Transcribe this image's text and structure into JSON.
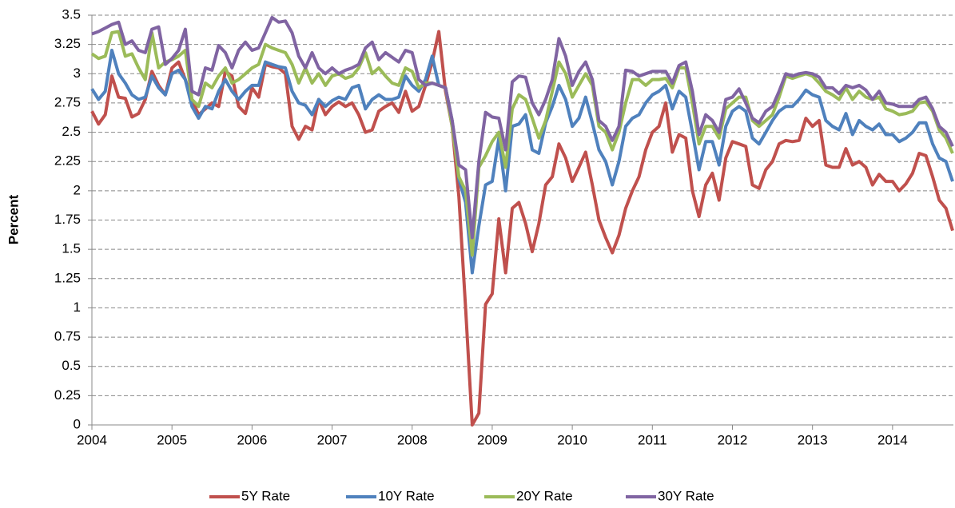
{
  "chart_data": {
    "type": "line",
    "y_label": "Percent",
    "x": [
      2004,
      2004.083,
      2004.167,
      2004.25,
      2004.333,
      2004.417,
      2004.5,
      2004.583,
      2004.667,
      2004.75,
      2004.833,
      2004.917,
      2005,
      2005.083,
      2005.167,
      2005.25,
      2005.333,
      2005.417,
      2005.5,
      2005.583,
      2005.667,
      2005.75,
      2005.833,
      2005.917,
      2006,
      2006.083,
      2006.167,
      2006.25,
      2006.333,
      2006.417,
      2006.5,
      2006.583,
      2006.667,
      2006.75,
      2006.833,
      2006.917,
      2007,
      2007.083,
      2007.167,
      2007.25,
      2007.333,
      2007.417,
      2007.5,
      2007.583,
      2007.667,
      2007.75,
      2007.833,
      2007.917,
      2008,
      2008.083,
      2008.167,
      2008.25,
      2008.333,
      2008.417,
      2008.5,
      2008.583,
      2008.667,
      2008.75,
      2008.833,
      2008.917,
      2009,
      2009.083,
      2009.167,
      2009.25,
      2009.333,
      2009.417,
      2009.5,
      2009.583,
      2009.667,
      2009.75,
      2009.833,
      2009.917,
      2010,
      2010.083,
      2010.167,
      2010.25,
      2010.333,
      2010.417,
      2010.5,
      2010.583,
      2010.667,
      2010.75,
      2010.833,
      2010.917,
      2011,
      2011.083,
      2011.167,
      2011.25,
      2011.333,
      2011.417,
      2011.5,
      2011.583,
      2011.667,
      2011.75,
      2011.833,
      2011.917,
      2012,
      2012.083,
      2012.167,
      2012.25,
      2012.333,
      2012.417,
      2012.5,
      2012.583,
      2012.667,
      2012.75,
      2012.833,
      2012.917,
      2013,
      2013.083,
      2013.167,
      2013.25,
      2013.333,
      2013.417,
      2013.5,
      2013.583,
      2013.667,
      2013.75,
      2013.833,
      2013.917,
      2014,
      2014.083,
      2014.167,
      2014.25,
      2014.333,
      2014.417,
      2014.5,
      2014.583,
      2014.667,
      2014.75
    ],
    "series": [
      {
        "name": "5Y Rate",
        "color": "#c0504d",
        "values": [
          2.68,
          2.57,
          2.65,
          2.98,
          2.8,
          2.79,
          2.63,
          2.66,
          2.78,
          3.02,
          2.9,
          2.82,
          3.05,
          3.1,
          2.95,
          2.78,
          2.65,
          2.7,
          2.75,
          2.72,
          3.02,
          2.98,
          2.72,
          2.66,
          2.88,
          2.8,
          3.08,
          3.06,
          3.05,
          3.0,
          2.55,
          2.44,
          2.55,
          2.52,
          2.78,
          2.65,
          2.72,
          2.76,
          2.72,
          2.75,
          2.65,
          2.5,
          2.52,
          2.68,
          2.72,
          2.75,
          2.67,
          2.85,
          2.68,
          2.72,
          2.9,
          3.1,
          3.36,
          2.85,
          2.55,
          1.95,
          1.0,
          0,
          0.1,
          1.03,
          1.12,
          1.76,
          1.3,
          1.85,
          1.9,
          1.72,
          1.48,
          1.72,
          2.05,
          2.12,
          2.4,
          2.28,
          2.08,
          2.2,
          2.33,
          2.05,
          1.75,
          1.6,
          1.47,
          1.62,
          1.85,
          2.0,
          2.12,
          2.35,
          2.5,
          2.55,
          2.75,
          2.33,
          2.48,
          2.45,
          2.0,
          1.78,
          2.05,
          2.15,
          1.92,
          2.28,
          2.42,
          2.4,
          2.38,
          2.05,
          2.02,
          2.18,
          2.25,
          2.4,
          2.43,
          2.42,
          2.43,
          2.62,
          2.55,
          2.6,
          2.22,
          2.2,
          2.2,
          2.36,
          2.22,
          2.25,
          2.2,
          2.05,
          2.14,
          2.08,
          2.08,
          2.0,
          2.06,
          2.15,
          2.32,
          2.3,
          2.12,
          1.92,
          1.85,
          1.66
        ]
      },
      {
        "name": "10Y Rate",
        "color": "#4f81bd",
        "values": [
          2.87,
          2.78,
          2.85,
          3.2,
          3.0,
          2.92,
          2.82,
          2.78,
          2.8,
          2.98,
          2.88,
          2.82,
          3.0,
          3.03,
          2.95,
          2.72,
          2.62,
          2.72,
          2.7,
          2.85,
          2.95,
          2.85,
          2.78,
          2.85,
          2.9,
          2.9,
          3.1,
          3.08,
          3.06,
          3.05,
          2.85,
          2.75,
          2.73,
          2.65,
          2.78,
          2.72,
          2.77,
          2.8,
          2.78,
          2.88,
          2.9,
          2.7,
          2.78,
          2.82,
          2.78,
          2.78,
          2.8,
          2.98,
          2.9,
          2.85,
          2.95,
          3.15,
          2.9,
          2.88,
          2.6,
          2.1,
          1.9,
          1.3,
          1.7,
          2.05,
          2.08,
          2.45,
          2.0,
          2.55,
          2.57,
          2.65,
          2.35,
          2.32,
          2.58,
          2.72,
          2.9,
          2.78,
          2.55,
          2.62,
          2.8,
          2.58,
          2.35,
          2.25,
          2.05,
          2.25,
          2.55,
          2.62,
          2.65,
          2.75,
          2.82,
          2.85,
          2.9,
          2.7,
          2.85,
          2.8,
          2.5,
          2.18,
          2.42,
          2.42,
          2.22,
          2.55,
          2.68,
          2.72,
          2.68,
          2.45,
          2.4,
          2.5,
          2.6,
          2.68,
          2.72,
          2.72,
          2.78,
          2.86,
          2.82,
          2.8,
          2.6,
          2.55,
          2.52,
          2.66,
          2.48,
          2.6,
          2.55,
          2.52,
          2.57,
          2.48,
          2.48,
          2.42,
          2.45,
          2.5,
          2.58,
          2.58,
          2.4,
          2.28,
          2.25,
          2.08
        ]
      },
      {
        "name": "20Y Rate",
        "color": "#9bbb59",
        "values": [
          3.17,
          3.13,
          3.15,
          3.35,
          3.36,
          3.15,
          3.17,
          3.05,
          2.95,
          3.35,
          3.05,
          3.1,
          3.12,
          3.15,
          3.2,
          2.78,
          2.72,
          2.92,
          2.88,
          2.98,
          3.05,
          2.92,
          2.95,
          3.0,
          3.05,
          3.08,
          3.25,
          3.22,
          3.2,
          3.18,
          3.08,
          2.92,
          3.05,
          2.92,
          3.0,
          2.9,
          2.98,
          3.0,
          2.96,
          2.98,
          3.05,
          3.18,
          3.0,
          3.05,
          2.98,
          2.92,
          2.9,
          3.05,
          3.02,
          2.88,
          2.92,
          2.92,
          2.9,
          2.88,
          2.55,
          2.12,
          2.0,
          1.45,
          2.2,
          2.3,
          2.42,
          2.5,
          2.2,
          2.7,
          2.82,
          2.78,
          2.62,
          2.45,
          2.6,
          2.85,
          3.1,
          3.0,
          2.8,
          2.9,
          3.0,
          2.9,
          2.55,
          2.5,
          2.35,
          2.5,
          2.75,
          2.95,
          2.95,
          2.9,
          2.95,
          2.95,
          2.96,
          2.88,
          3.05,
          3.05,
          2.75,
          2.4,
          2.55,
          2.55,
          2.45,
          2.7,
          2.75,
          2.8,
          2.8,
          2.6,
          2.55,
          2.6,
          2.65,
          2.8,
          2.98,
          2.96,
          2.98,
          3.0,
          2.98,
          2.92,
          2.85,
          2.82,
          2.78,
          2.88,
          2.78,
          2.85,
          2.8,
          2.78,
          2.8,
          2.7,
          2.68,
          2.65,
          2.66,
          2.68,
          2.75,
          2.76,
          2.68,
          2.52,
          2.45,
          2.32
        ]
      },
      {
        "name": "30Y Rate",
        "color": "#8064a2",
        "values": [
          3.34,
          3.36,
          3.39,
          3.42,
          3.44,
          3.25,
          3.28,
          3.2,
          3.18,
          3.38,
          3.4,
          3.08,
          3.13,
          3.2,
          3.38,
          2.85,
          2.82,
          3.05,
          3.03,
          3.24,
          3.18,
          3.05,
          3.2,
          3.27,
          3.2,
          3.22,
          3.35,
          3.48,
          3.44,
          3.45,
          3.35,
          3.15,
          3.05,
          3.18,
          3.05,
          3.0,
          3.05,
          3.0,
          3.03,
          3.05,
          3.08,
          3.22,
          3.27,
          3.12,
          3.18,
          3.14,
          3.1,
          3.2,
          3.18,
          2.95,
          2.9,
          2.92,
          2.9,
          2.88,
          2.6,
          2.22,
          2.18,
          1.6,
          2.25,
          2.67,
          2.63,
          2.62,
          2.35,
          2.93,
          2.98,
          2.97,
          2.75,
          2.65,
          2.78,
          2.95,
          3.3,
          3.15,
          2.9,
          3.02,
          3.1,
          2.95,
          2.6,
          2.55,
          2.43,
          2.55,
          3.03,
          3.02,
          2.98,
          3.0,
          3.02,
          3.02,
          3.02,
          2.92,
          3.07,
          3.1,
          2.85,
          2.48,
          2.65,
          2.6,
          2.5,
          2.78,
          2.8,
          2.87,
          2.75,
          2.62,
          2.58,
          2.68,
          2.72,
          2.85,
          3.0,
          2.98,
          3.0,
          3.01,
          3.0,
          2.97,
          2.88,
          2.88,
          2.83,
          2.9,
          2.88,
          2.9,
          2.86,
          2.78,
          2.85,
          2.75,
          2.74,
          2.72,
          2.72,
          2.72,
          2.78,
          2.8,
          2.7,
          2.55,
          2.5,
          2.38
        ]
      }
    ],
    "xlim": [
      2004,
      2014.76
    ],
    "xticks": [
      2004,
      2005,
      2006,
      2007,
      2008,
      2009,
      2010,
      2011,
      2012,
      2013,
      2014
    ],
    "ylim": [
      0,
      3.5
    ],
    "yticks": [
      0,
      0.25,
      0.5,
      0.75,
      1,
      1.25,
      1.5,
      1.75,
      2,
      2.25,
      2.5,
      2.75,
      3,
      3.25,
      3.5
    ],
    "grid": true,
    "legend": "bottom"
  }
}
